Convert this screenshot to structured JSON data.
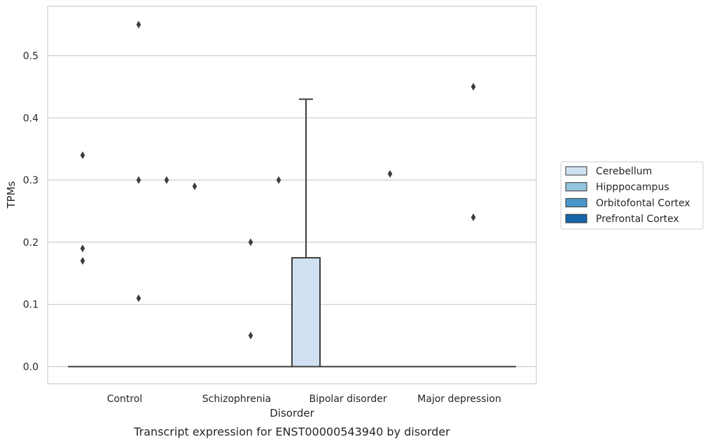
{
  "chart_data": {
    "type": "box",
    "caption": "Transcript expression for ENST00000543940 by disorder",
    "xlabel": "Disorder",
    "ylabel": "TPMs",
    "ylim": [
      -0.027,
      0.58
    ],
    "yticks": [
      0.0,
      0.1,
      0.2,
      0.3,
      0.4,
      0.5
    ],
    "ytick_labels": [
      "0.0",
      "0.1",
      "0.2",
      "0.3",
      "0.4",
      "0.5"
    ],
    "grid": true,
    "categories": [
      "Control",
      "Schizophrenia",
      "Bipolar disorder",
      "Major depression"
    ],
    "legend": {
      "placement": "center-right, outside plot",
      "entries": [
        {
          "label": "Cerebellum",
          "color": "#d0e1f2"
        },
        {
          "label": "Hipppocampus",
          "color": "#94c4df"
        },
        {
          "label": "Orbitofontal Cortex",
          "color": "#4a98c9"
        },
        {
          "label": "Prefrontal Cortex",
          "color": "#1764ab"
        }
      ]
    },
    "boxes": [
      {
        "category": "Control",
        "series": "Cerebellum",
        "q1": 0,
        "median": 0,
        "q3": 0,
        "whisker_low": 0,
        "whisker_high": 0
      },
      {
        "category": "Control",
        "series": "Hipppocampus",
        "q1": 0,
        "median": 0,
        "q3": 0,
        "whisker_low": 0,
        "whisker_high": 0
      },
      {
        "category": "Control",
        "series": "Orbitofontal Cortex",
        "q1": 0,
        "median": 0,
        "q3": 0,
        "whisker_low": 0,
        "whisker_high": 0
      },
      {
        "category": "Control",
        "series": "Prefrontal Cortex",
        "q1": 0,
        "median": 0,
        "q3": 0,
        "whisker_low": 0,
        "whisker_high": 0
      },
      {
        "category": "Schizophrenia",
        "series": "Cerebellum",
        "q1": 0,
        "median": 0,
        "q3": 0,
        "whisker_low": 0,
        "whisker_high": 0
      },
      {
        "category": "Schizophrenia",
        "series": "Hipppocampus",
        "q1": 0,
        "median": 0,
        "q3": 0,
        "whisker_low": 0,
        "whisker_high": 0
      },
      {
        "category": "Schizophrenia",
        "series": "Orbitofontal Cortex",
        "q1": 0,
        "median": 0,
        "q3": 0,
        "whisker_low": 0,
        "whisker_high": 0
      },
      {
        "category": "Schizophrenia",
        "series": "Prefrontal Cortex",
        "q1": 0,
        "median": 0,
        "q3": 0,
        "whisker_low": 0,
        "whisker_high": 0
      },
      {
        "category": "Bipolar disorder",
        "series": "Cerebellum",
        "q1": 0,
        "median": 0,
        "q3": 0.175,
        "whisker_low": 0,
        "whisker_high": 0.43
      },
      {
        "category": "Bipolar disorder",
        "series": "Hipppocampus",
        "q1": 0,
        "median": 0,
        "q3": 0,
        "whisker_low": 0,
        "whisker_high": 0
      },
      {
        "category": "Bipolar disorder",
        "series": "Orbitofontal Cortex",
        "q1": 0,
        "median": 0,
        "q3": 0,
        "whisker_low": 0,
        "whisker_high": 0
      },
      {
        "category": "Bipolar disorder",
        "series": "Prefrontal Cortex",
        "q1": 0,
        "median": 0,
        "q3": 0,
        "whisker_low": 0,
        "whisker_high": 0
      },
      {
        "category": "Major depression",
        "series": "Cerebellum",
        "q1": 0,
        "median": 0,
        "q3": 0,
        "whisker_low": 0,
        "whisker_high": 0
      },
      {
        "category": "Major depression",
        "series": "Hipppocampus",
        "q1": 0,
        "median": 0,
        "q3": 0,
        "whisker_low": 0,
        "whisker_high": 0
      },
      {
        "category": "Major depression",
        "series": "Orbitofontal Cortex",
        "q1": 0,
        "median": 0,
        "q3": 0,
        "whisker_low": 0,
        "whisker_high": 0
      },
      {
        "category": "Major depression",
        "series": "Prefrontal Cortex",
        "q1": 0,
        "median": 0,
        "q3": 0,
        "whisker_low": 0,
        "whisker_high": 0
      }
    ],
    "outliers": [
      {
        "category": "Control",
        "series": "Cerebellum",
        "values": [
          0.34,
          0.19,
          0.17
        ]
      },
      {
        "category": "Control",
        "series": "Orbitofontal Cortex",
        "values": [
          0.55,
          0.3,
          0.11
        ]
      },
      {
        "category": "Control",
        "series": "Prefrontal Cortex",
        "values": [
          0.3
        ]
      },
      {
        "category": "Schizophrenia",
        "series": "Cerebellum",
        "values": [
          0.29
        ]
      },
      {
        "category": "Schizophrenia",
        "series": "Orbitofontal Cortex",
        "values": [
          0.2,
          0.05
        ]
      },
      {
        "category": "Schizophrenia",
        "series": "Prefrontal Cortex",
        "values": [
          0.3
        ]
      },
      {
        "category": "Bipolar disorder",
        "series": "Prefrontal Cortex",
        "values": [
          0.31
        ]
      },
      {
        "category": "Major depression",
        "series": "Orbitofontal Cortex",
        "values": [
          0.45,
          0.24
        ]
      }
    ]
  }
}
